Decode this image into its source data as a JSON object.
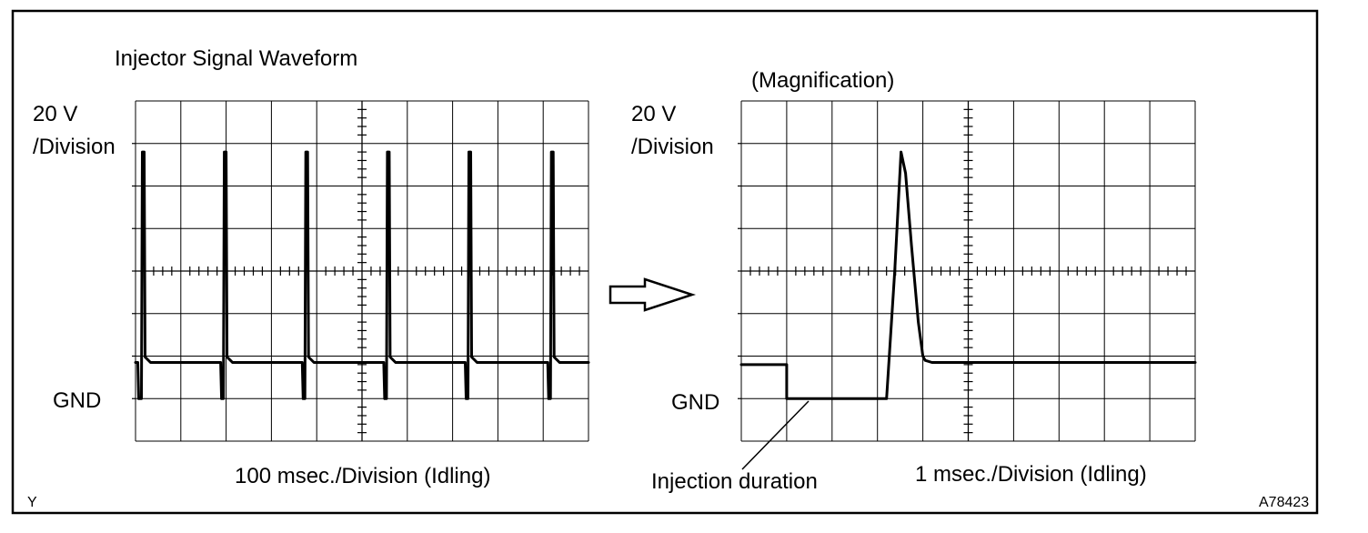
{
  "figure": {
    "title": "Injector Signal Waveform",
    "figure_id": "A78423",
    "corner_mark": "Y",
    "callout": "Injection duration"
  },
  "chart_data": [
    {
      "type": "line",
      "title": "",
      "y_scale_label": "20 V /Division",
      "y_scale_line1": "20 V",
      "y_scale_line2": "/Division",
      "gnd_label": "GND",
      "x_scale_label": "100 msec./Division (Idling)",
      "grid": true,
      "divisions": {
        "x": 10,
        "y": 8
      },
      "gnd_division": 1,
      "y_units": "divisions above GND",
      "x_units": "divisions",
      "pulses": [
        {
          "drop_x": 0.05,
          "spike_x": 0.17,
          "spike_y": 5.8
        },
        {
          "drop_x": 1.88,
          "spike_x": 1.98,
          "spike_y": 5.8
        },
        {
          "drop_x": 3.68,
          "spike_x": 3.78,
          "spike_y": 5.8
        },
        {
          "drop_x": 5.48,
          "spike_x": 5.58,
          "spike_y": 5.8
        },
        {
          "drop_x": 7.28,
          "spike_x": 7.38,
          "spike_y": 5.8
        },
        {
          "drop_x": 9.1,
          "spike_x": 9.2,
          "spike_y": 5.8
        }
      ],
      "idle_level": 0.85,
      "low_level": 0.0
    },
    {
      "type": "line",
      "title": "(Magnification)",
      "y_scale_label": "20 V /Division",
      "y_scale_line1": "20 V",
      "y_scale_line2": "/Division",
      "gnd_label": "GND",
      "x_scale_label": "1 msec./Division (Idling)",
      "grid": true,
      "divisions": {
        "x": 10,
        "y": 8
      },
      "gnd_division": 1,
      "y_units": "divisions above GND",
      "x_units": "msec",
      "series": [
        {
          "x": [
            0,
            1.0,
            1.0,
            3.2,
            3.38,
            3.52,
            3.62,
            3.75,
            3.9,
            4.0,
            4.05,
            4.2,
            10
          ],
          "y": [
            0.8,
            0.8,
            0.0,
            0.0,
            3.0,
            5.8,
            5.3,
            3.6,
            1.8,
            1.0,
            0.9,
            0.85,
            0.85
          ]
        }
      ],
      "injection_duration_msec": [
        1.0,
        3.2
      ]
    }
  ]
}
